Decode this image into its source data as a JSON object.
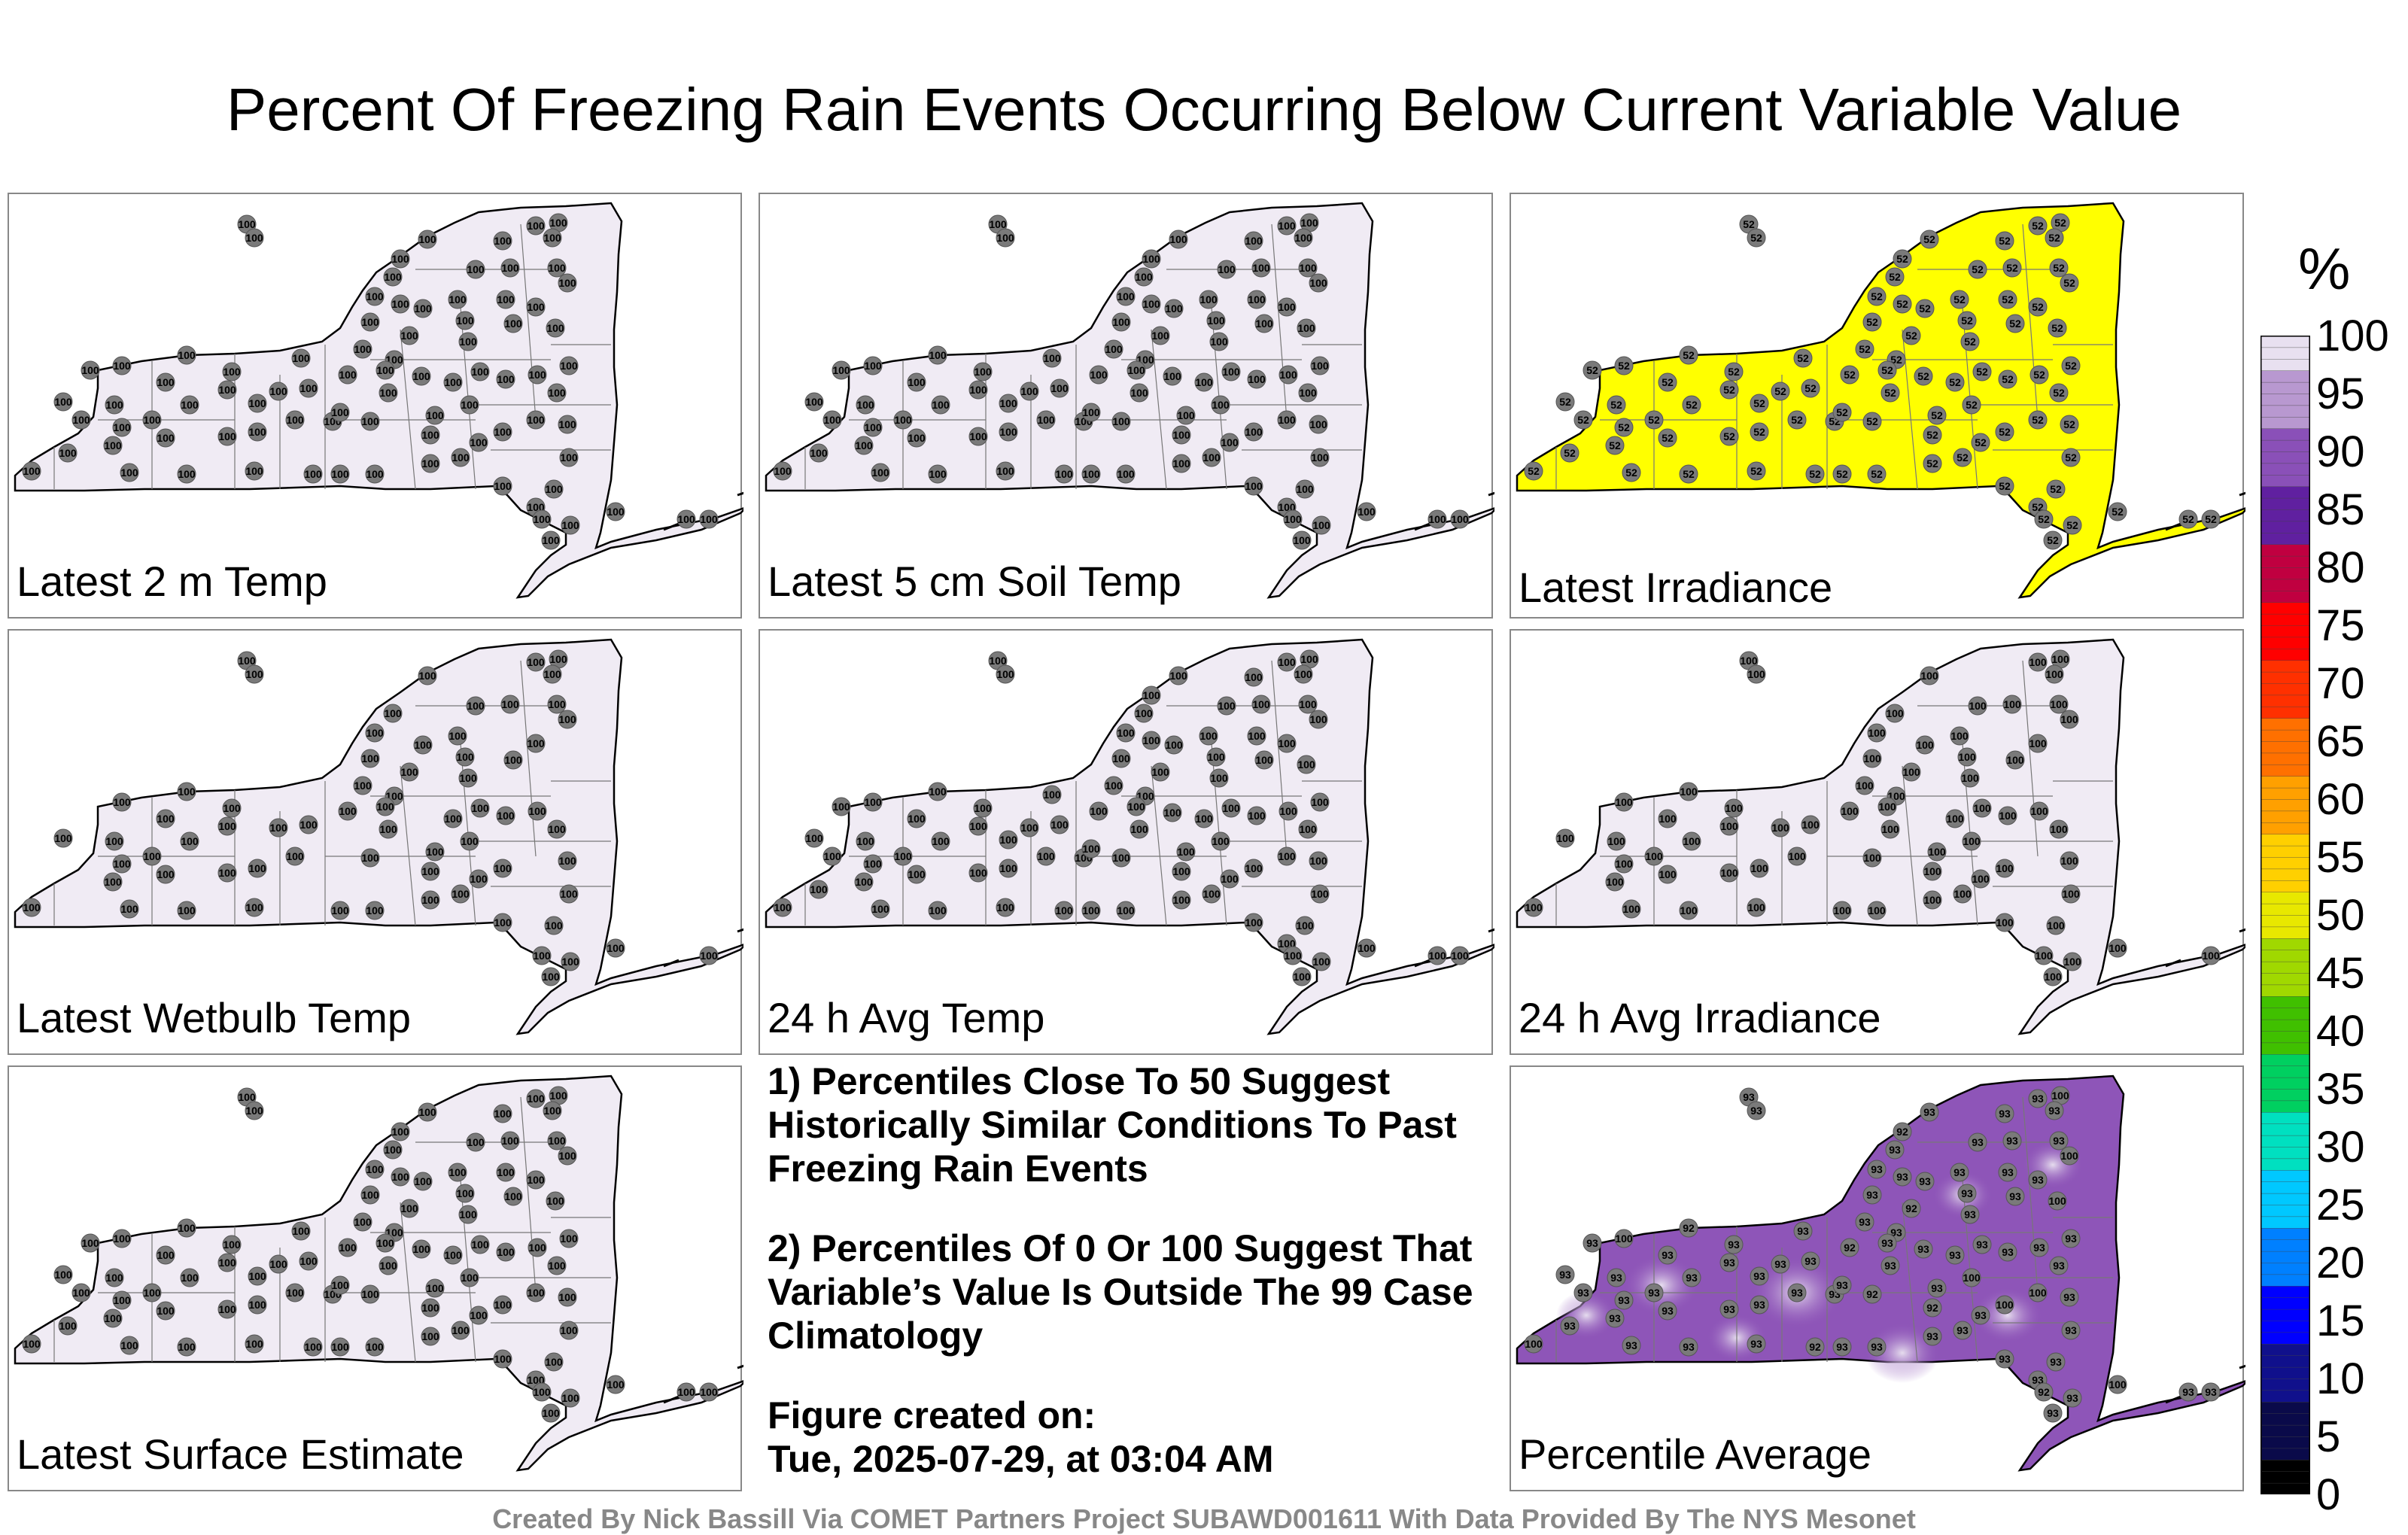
{
  "title": "Percent Of Freezing Rain Events Occurring Below Current Variable Value",
  "panels": [
    {
      "label": "Latest 2 m Temp",
      "fill": "#f0ebf4",
      "value": "100"
    },
    {
      "label": "Latest 5 cm Soil Temp",
      "fill": "#f0ebf4",
      "value": "100"
    },
    {
      "label": "Latest Irradiance",
      "fill": "#ffff00",
      "value": "52"
    },
    {
      "label": "Latest Wetbulb Temp",
      "fill": "#f0ebf4",
      "value": "100"
    },
    {
      "label": "24 h Avg Temp",
      "fill": "#f0ebf4",
      "value": "100"
    },
    {
      "label": "24 h Avg Irradiance",
      "fill": "#f0ebf4",
      "value": "100"
    },
    {
      "label": "Latest Surface Estimate",
      "fill": "#f0ebf4",
      "value": "100"
    },
    {
      "label": "Percentile Average",
      "fill": "#8e55b8",
      "value": "93"
    }
  ],
  "notes": {
    "line1": "1) Percentiles Close To 50 Suggest Historically Similar Conditions To Past Freezing Rain Events",
    "line2": "2) Percentiles Of 0 Or 100 Suggest That Variable’s Value Is Outside The 99 Case Climatology",
    "created_label": "Figure created on:",
    "created_value": "Tue, 2025-07-29, at 03:04 AM"
  },
  "colorbar": {
    "unit": "%",
    "ticks": [
      "100",
      "95",
      "90",
      "85",
      "80",
      "75",
      "70",
      "65",
      "60",
      "55",
      "50",
      "45",
      "40",
      "35",
      "30",
      "25",
      "20",
      "15",
      "10",
      "5",
      "0"
    ],
    "colors": [
      "#000000",
      "#0a0a4a",
      "#10108c",
      "#0000ff",
      "#0080ff",
      "#00c8ff",
      "#00e0c0",
      "#00d060",
      "#40c000",
      "#a0d800",
      "#e8e800",
      "#ffd000",
      "#ffa000",
      "#ff7000",
      "#ff3000",
      "#ff0000",
      "#c00040",
      "#6020a0",
      "#8a50b8",
      "#b898d0",
      "#e8e0f0"
    ]
  },
  "footer": "Created By Nick Bassill Via COMET Partners Project SUBAWD001611 With Data Provided By The NYS Mesonet"
}
